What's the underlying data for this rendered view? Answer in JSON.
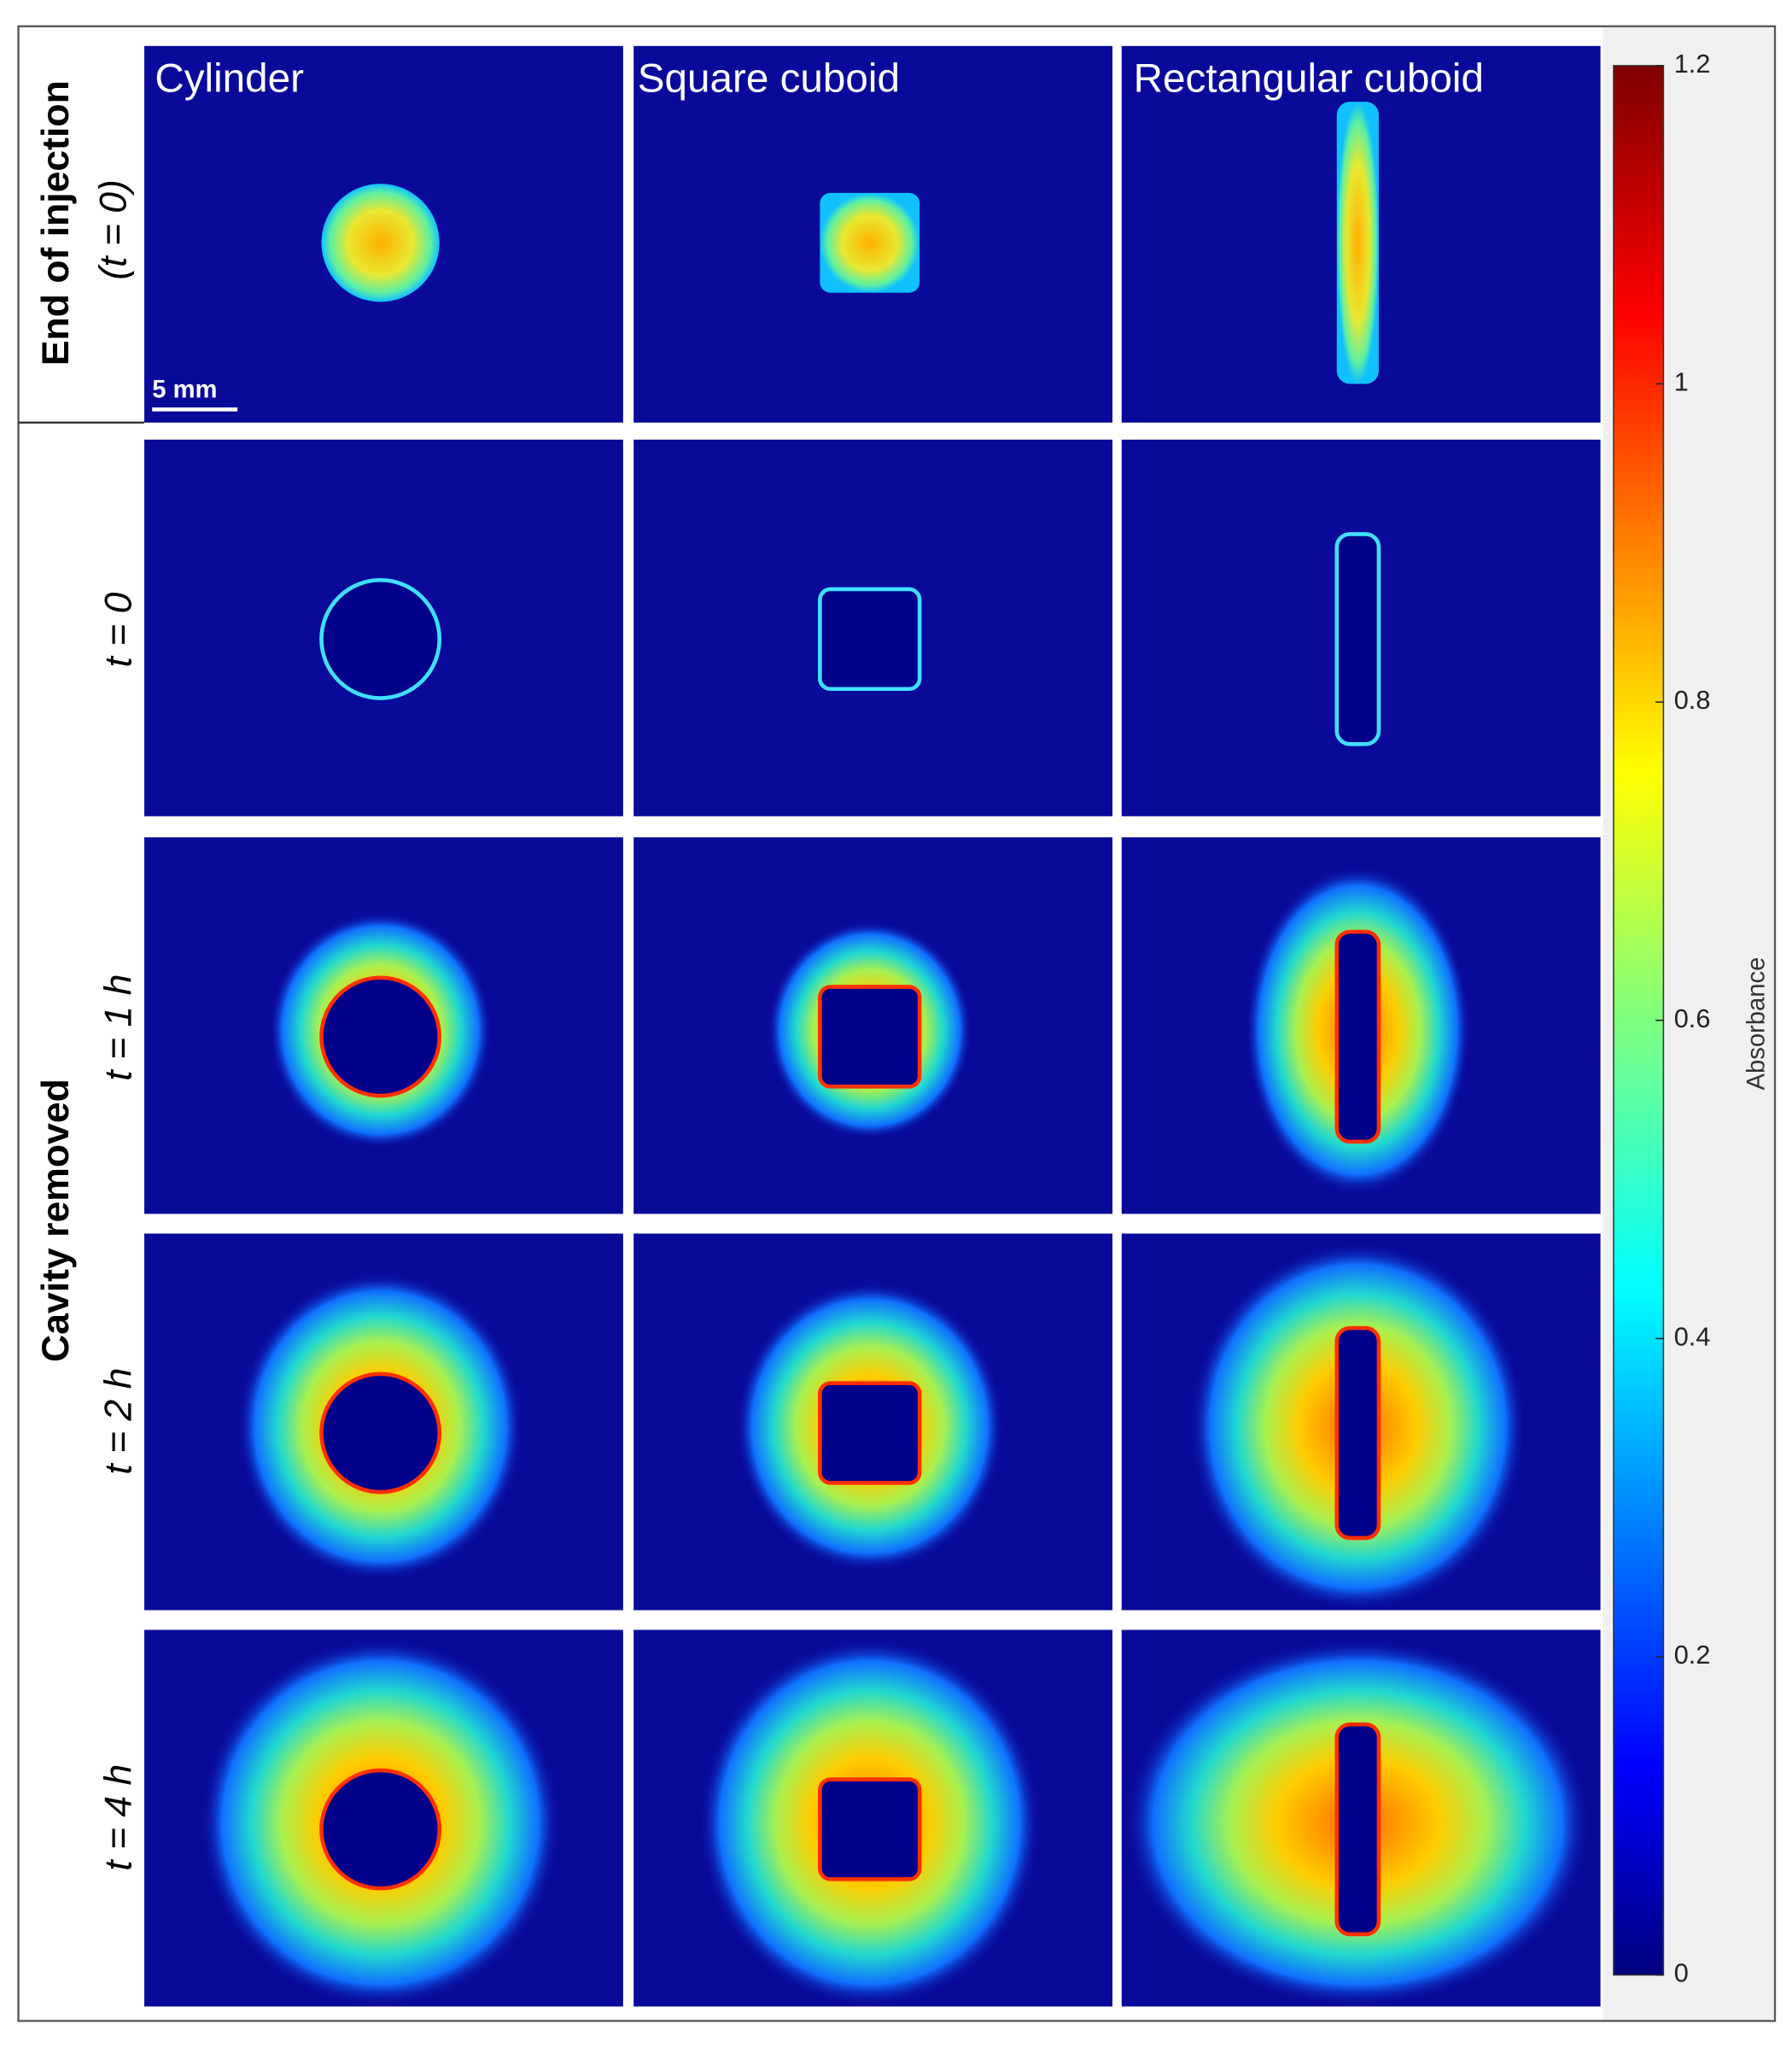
{
  "columns": [
    "Cylinder",
    "Square cuboid",
    "Rectangular cuboid"
  ],
  "row_groups": [
    {
      "label": "End of injection",
      "rows": [
        "(t = 0)"
      ]
    },
    {
      "label": "Cavity removed",
      "rows": [
        "t = 0",
        "t = 1 h",
        "t = 2 h",
        "t = 4 h"
      ]
    }
  ],
  "scale_bar": "5 mm",
  "colorbar": {
    "label": "Absorbance",
    "lim": [
      0,
      1.2
    ],
    "ticks": [
      0,
      0.2,
      0.4,
      0.6,
      0.8,
      1,
      1.2
    ]
  }
}
